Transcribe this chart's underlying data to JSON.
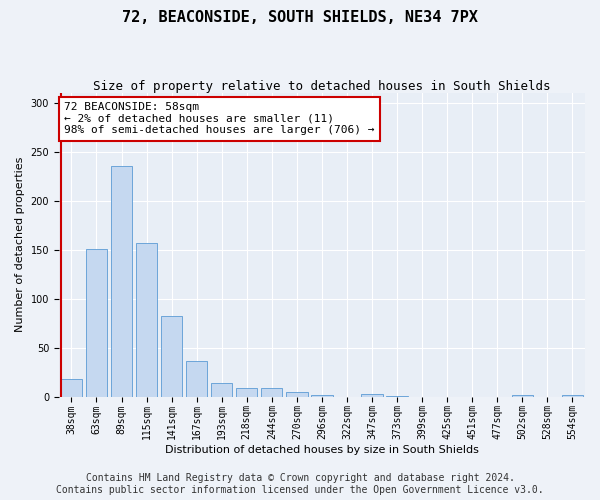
{
  "title": "72, BEACONSIDE, SOUTH SHIELDS, NE34 7PX",
  "subtitle": "Size of property relative to detached houses in South Shields",
  "xlabel": "Distribution of detached houses by size in South Shields",
  "ylabel": "Number of detached properties",
  "categories": [
    "38sqm",
    "63sqm",
    "89sqm",
    "115sqm",
    "141sqm",
    "167sqm",
    "193sqm",
    "218sqm",
    "244sqm",
    "270sqm",
    "296sqm",
    "322sqm",
    "347sqm",
    "373sqm",
    "399sqm",
    "425sqm",
    "451sqm",
    "477sqm",
    "502sqm",
    "528sqm",
    "554sqm"
  ],
  "values": [
    18,
    151,
    235,
    157,
    82,
    36,
    14,
    9,
    9,
    5,
    2,
    0,
    3,
    1,
    0,
    0,
    0,
    0,
    2,
    0,
    2
  ],
  "bar_color": "#c5d8f0",
  "bar_edge_color": "#5b9bd5",
  "highlight_bar_index": 0,
  "highlight_color": "#cc0000",
  "annotation_text": "72 BEACONSIDE: 58sqm\n← 2% of detached houses are smaller (11)\n98% of semi-detached houses are larger (706) →",
  "annotation_box_color": "#ffffff",
  "annotation_box_edge_color": "#cc0000",
  "ylim": [
    0,
    310
  ],
  "yticks": [
    0,
    50,
    100,
    150,
    200,
    250,
    300
  ],
  "footer_line1": "Contains HM Land Registry data © Crown copyright and database right 2024.",
  "footer_line2": "Contains public sector information licensed under the Open Government Licence v3.0.",
  "bg_color": "#eef2f8",
  "plot_bg_color": "#e8eef6",
  "grid_color": "#ffffff",
  "title_fontsize": 11,
  "subtitle_fontsize": 9,
  "axis_label_fontsize": 8,
  "tick_fontsize": 7,
  "annotation_fontsize": 8,
  "footer_fontsize": 7
}
